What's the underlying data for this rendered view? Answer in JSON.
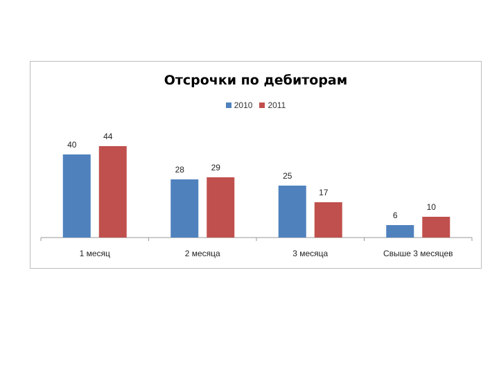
{
  "chart_data": {
    "type": "bar",
    "title": "Отсрочки по дебиторам",
    "categories": [
      "1 месяц",
      "2 месяца",
      "3 месяца",
      "Свыше 3 месяцев"
    ],
    "series": [
      {
        "name": "2010",
        "values": [
          40,
          28,
          25,
          6
        ],
        "color": "#4f81bd"
      },
      {
        "name": "2011",
        "values": [
          44,
          29,
          17,
          10
        ],
        "color": "#c0504d"
      }
    ],
    "ylim": [
      0,
      50
    ],
    "grid": false,
    "legend": "top-center"
  }
}
